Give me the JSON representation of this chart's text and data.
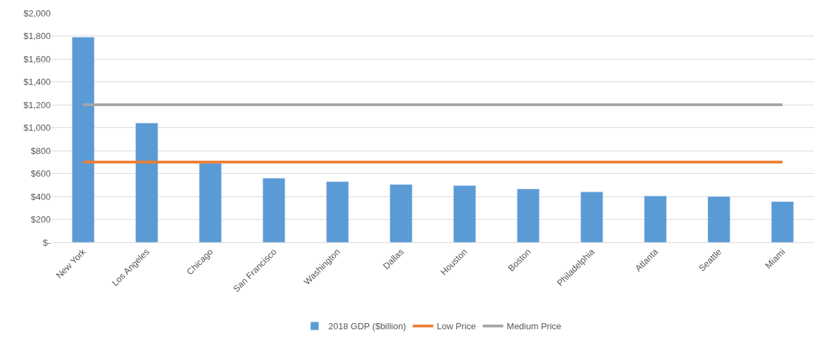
{
  "chart_data": {
    "type": "bar",
    "categories": [
      "New York",
      "Los Angeles",
      "Chicago",
      "San Francisco",
      "Washington",
      "Dallas",
      "Houston",
      "Boston",
      "Philadelphia",
      "Atlanta",
      "Seattle",
      "Miami"
    ],
    "series": [
      {
        "name": "2018 GDP ($billion)",
        "color": "#5b9bd5",
        "values": [
          1790,
          1040,
          690,
          560,
          530,
          505,
          495,
          465,
          440,
          405,
          400,
          355
        ]
      },
      {
        "name": "Low Price",
        "type": "line",
        "color": "#ed7d31",
        "values": [
          700,
          700,
          700,
          700,
          700,
          700,
          700,
          700,
          700,
          700,
          700,
          700
        ]
      },
      {
        "name": "Medium Price",
        "type": "line",
        "color": "#a5a5a5",
        "values": [
          1200,
          1200,
          1200,
          1200,
          1200,
          1200,
          1200,
          1200,
          1200,
          1200,
          1200,
          1200
        ]
      }
    ],
    "ylim": [
      0,
      2000
    ],
    "yticks": [
      {
        "value": 0,
        "label": "$-"
      },
      {
        "value": 200,
        "label": "$200"
      },
      {
        "value": 400,
        "label": "$400"
      },
      {
        "value": 600,
        "label": "$600"
      },
      {
        "value": 800,
        "label": "$800"
      },
      {
        "value": 1000,
        "label": "$1,000"
      },
      {
        "value": 1200,
        "label": "$1,200"
      },
      {
        "value": 1400,
        "label": "$1,400"
      },
      {
        "value": 1600,
        "label": "$1,600"
      },
      {
        "value": 1800,
        "label": "$1,800"
      },
      {
        "value": 2000,
        "label": "$2,000"
      }
    ],
    "grid": "y",
    "legend": "bottom",
    "marker": "none",
    "line_style": "solid"
  }
}
